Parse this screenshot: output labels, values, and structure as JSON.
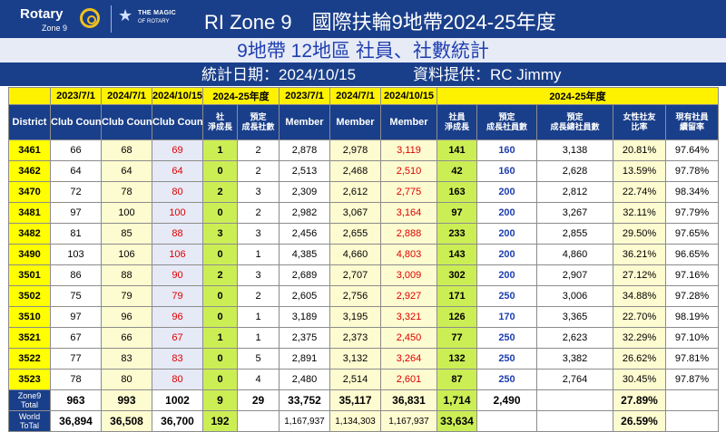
{
  "header": {
    "logo_text": "Rotary",
    "logo_sub": "Zone 9",
    "magic_line1": "THE MAGIC",
    "magic_line2": "OF ROTARY",
    "title": "RI Zone 9　國際扶輪9地帶2024-25年度",
    "subtitle": "9地帶 12地區 社員、社數統計",
    "date_text": "統計日期：2024/10/15",
    "source_text": "資料提供：RC Jimmy"
  },
  "table": {
    "year_headers": {
      "c1": "2023/7/1",
      "c2": "2024/7/1",
      "c3": "2024/10/15",
      "c4": "2024-25年度",
      "m1": "2023/7/1",
      "m2": "2024/7/1",
      "m3": "2024/10/15",
      "m4": "2024-25年度"
    },
    "col_headers": {
      "district": "District",
      "club_count_1": "Club Count",
      "club_count_2": "Club Count",
      "club_count_3": "Club Count",
      "club_net": "社\n淨成長",
      "club_plan": "預定\n成長社數",
      "member_1": "Member",
      "member_2": "Member",
      "member_3": "Member",
      "member_net": "社員\n淨成長",
      "member_plan": "預定\n成長社員數",
      "member_total_plan": "預定\n成長總社員數",
      "female_ratio": "女性社友\n比率",
      "retention": "現有社員\n續留率"
    },
    "rows": [
      {
        "district": "3461",
        "c1": "66",
        "c2": "68",
        "c3": "69",
        "cnet": "1",
        "cplan": "2",
        "m1": "2,878",
        "m2": "2,978",
        "m3": "3,119",
        "mnet": "141",
        "mplan": "160",
        "mtot": "3,138",
        "fem": "20.81%",
        "ret": "97.64%"
      },
      {
        "district": "3462",
        "c1": "64",
        "c2": "64",
        "c3": "64",
        "cnet": "0",
        "cplan": "2",
        "m1": "2,513",
        "m2": "2,468",
        "m3": "2,510",
        "mnet": "42",
        "mplan": "160",
        "mtot": "2,628",
        "fem": "13.59%",
        "ret": "97.78%"
      },
      {
        "district": "3470",
        "c1": "72",
        "c2": "78",
        "c3": "80",
        "cnet": "2",
        "cplan": "3",
        "m1": "2,309",
        "m2": "2,612",
        "m3": "2,775",
        "mnet": "163",
        "mplan": "200",
        "mtot": "2,812",
        "fem": "22.74%",
        "ret": "98.34%"
      },
      {
        "district": "3481",
        "c1": "97",
        "c2": "100",
        "c3": "100",
        "cnet": "0",
        "cplan": "2",
        "m1": "2,982",
        "m2": "3,067",
        "m3": "3,164",
        "mnet": "97",
        "mplan": "200",
        "mtot": "3,267",
        "fem": "32.11%",
        "ret": "97.79%"
      },
      {
        "district": "3482",
        "c1": "81",
        "c2": "85",
        "c3": "88",
        "cnet": "3",
        "cplan": "3",
        "m1": "2,456",
        "m2": "2,655",
        "m3": "2,888",
        "mnet": "233",
        "mplan": "200",
        "mtot": "2,855",
        "fem": "29.50%",
        "ret": "97.65%"
      },
      {
        "district": "3490",
        "c1": "103",
        "c2": "106",
        "c3": "106",
        "cnet": "0",
        "cplan": "1",
        "m1": "4,385",
        "m2": "4,660",
        "m3": "4,803",
        "mnet": "143",
        "mplan": "200",
        "mtot": "4,860",
        "fem": "36.21%",
        "ret": "96.65%"
      },
      {
        "district": "3501",
        "c1": "86",
        "c2": "88",
        "c3": "90",
        "cnet": "2",
        "cplan": "3",
        "m1": "2,689",
        "m2": "2,707",
        "m3": "3,009",
        "mnet": "302",
        "mplan": "200",
        "mtot": "2,907",
        "fem": "27.12%",
        "ret": "97.16%"
      },
      {
        "district": "3502",
        "c1": "75",
        "c2": "79",
        "c3": "79",
        "cnet": "0",
        "cplan": "2",
        "m1": "2,605",
        "m2": "2,756",
        "m3": "2,927",
        "mnet": "171",
        "mplan": "250",
        "mtot": "3,006",
        "fem": "34.88%",
        "ret": "97.28%"
      },
      {
        "district": "3510",
        "c1": "97",
        "c2": "96",
        "c3": "96",
        "cnet": "0",
        "cplan": "1",
        "m1": "3,189",
        "m2": "3,195",
        "m3": "3,321",
        "mnet": "126",
        "mplan": "170",
        "mtot": "3,365",
        "fem": "22.70%",
        "ret": "98.19%"
      },
      {
        "district": "3521",
        "c1": "67",
        "c2": "66",
        "c3": "67",
        "cnet": "1",
        "cplan": "1",
        "m1": "2,375",
        "m2": "2,373",
        "m3": "2,450",
        "mnet": "77",
        "mplan": "250",
        "mtot": "2,623",
        "fem": "32.29%",
        "ret": "97.10%"
      },
      {
        "district": "3522",
        "c1": "77",
        "c2": "83",
        "c3": "83",
        "cnet": "0",
        "cplan": "5",
        "m1": "2,891",
        "m2": "3,132",
        "m3": "3,264",
        "mnet": "132",
        "mplan": "250",
        "mtot": "3,382",
        "fem": "26.62%",
        "ret": "97.81%"
      },
      {
        "district": "3523",
        "c1": "78",
        "c2": "80",
        "c3": "80",
        "cnet": "0",
        "cplan": "4",
        "m1": "2,480",
        "m2": "2,514",
        "m3": "2,601",
        "mnet": "87",
        "mplan": "250",
        "mtot": "2,764",
        "fem": "30.45%",
        "ret": "97.87%"
      }
    ],
    "zone_total": {
      "label": "Zone9 Total",
      "c1": "963",
      "c2": "993",
      "c3": "1002",
      "cnet": "9",
      "cplan": "29",
      "m1": "33,752",
      "m2": "35,117",
      "m3": "36,831",
      "mnet": "1,714",
      "mplan": "2,490",
      "fem": "27.89%"
    },
    "world_total": {
      "label": "World ToTal",
      "c1": "36,894",
      "c2": "36,508",
      "c3": "36,700",
      "cnet": "192",
      "m1": "1,167,937",
      "m2": "1,134,303",
      "m3": "1,167,937",
      "mnet": "33,634",
      "fem": "26.59%"
    }
  }
}
